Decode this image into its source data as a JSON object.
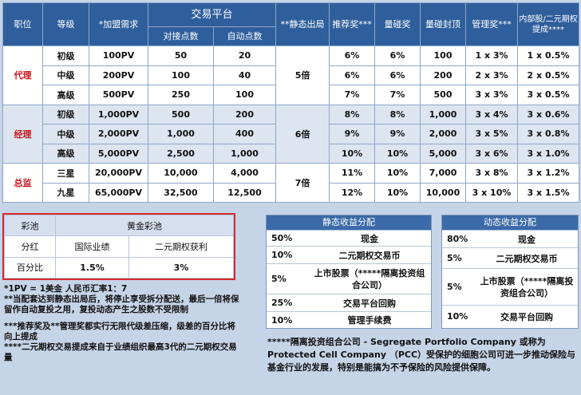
{
  "header": {
    "position": "职位",
    "level": "等级",
    "franchise": "*加盟需求",
    "trading_platform": "交易平台",
    "dock_points": "对接点数",
    "auto_points": "自动点数",
    "static_exit": "**静态出局",
    "referral": "推荐奖***",
    "volume": "量碰奖",
    "volume_cap": "量碰封顶",
    "management": "管理奖***",
    "internal": "内部股/二元期权提成****"
  },
  "groups": [
    {
      "role": "代理",
      "multiple": "5倍",
      "rows": [
        {
          "level": "初级",
          "franchise": "100PV",
          "dock": "50",
          "auto": "20",
          "referral": "6%",
          "volume": "6%",
          "cap": "100",
          "management": "1 x 3%",
          "internal": "1 x 0.5%"
        },
        {
          "level": "中级",
          "franchise": "200PV",
          "dock": "100",
          "auto": "40",
          "referral": "6%",
          "volume": "6%",
          "cap": "200",
          "management": "2 x 3%",
          "internal": "2 x 0.5%"
        },
        {
          "level": "高级",
          "franchise": "500PV",
          "dock": "250",
          "auto": "100",
          "referral": "7%",
          "volume": "7%",
          "cap": "500",
          "management": "3 x 3%",
          "internal": "3 x 0.5%"
        }
      ]
    },
    {
      "role": "经理",
      "multiple": "6倍",
      "rows": [
        {
          "level": "初级",
          "franchise": "1,000PV",
          "dock": "500",
          "auto": "200",
          "referral": "8%",
          "volume": "8%",
          "cap": "1,000",
          "management": "3 x 4%",
          "internal": "3 x 0.6%"
        },
        {
          "level": "中级",
          "franchise": "2,000PV",
          "dock": "1,000",
          "auto": "400",
          "referral": "9%",
          "volume": "9%",
          "cap": "2,000",
          "management": "3 x 5%",
          "internal": "3 x 0.8%"
        },
        {
          "level": "高级",
          "franchise": "5,000PV",
          "dock": "2,500",
          "auto": "1,000",
          "referral": "10%",
          "volume": "10%",
          "cap": "5,000",
          "management": "3 x 6%",
          "internal": "3 x 1.0%"
        }
      ]
    },
    {
      "role": "总监",
      "multiple": "7倍",
      "rows": [
        {
          "level": "三星",
          "franchise": "20,000PV",
          "dock": "10,000",
          "auto": "4,000",
          "referral": "11%",
          "volume": "10%",
          "cap": "7,000",
          "management": "3 x 8%",
          "internal": "3 x 1.2%"
        },
        {
          "level": "九星",
          "franchise": "65,000PV",
          "dock": "32,500",
          "auto": "12,500",
          "referral": "12%",
          "volume": "10%",
          "cap": "10,000",
          "management": "3 x 10%",
          "internal": "3 x 1.5%"
        }
      ]
    }
  ],
  "pool": {
    "label": "彩池",
    "title": "黄金彩池",
    "share": "分红",
    "intl": "国际业绩",
    "binary": "二元期权获利",
    "pct_label": "百分比",
    "intl_pct": "1.5%",
    "binary_pct": "3%"
  },
  "static_dist": {
    "title": "静态收益分配",
    "items": [
      {
        "pct": "50%",
        "label": "现金"
      },
      {
        "pct": "10%",
        "label": "二元期权交易币"
      },
      {
        "pct": "5%",
        "label": "上市股票（*****隔离投资组合公司）"
      },
      {
        "pct": "25%",
        "label": "交易平台回购"
      },
      {
        "pct": "10%",
        "label": "管理手续费"
      }
    ]
  },
  "dynamic_dist": {
    "title": "动态收益分配",
    "items": [
      {
        "pct": "80%",
        "label": "现金"
      },
      {
        "pct": "5%",
        "label": "二元期权交易币"
      },
      {
        "pct": "5%",
        "label": "上市股票（*****隔离投资组合公司）"
      },
      {
        "pct": "10%",
        "label": "交易平台回购"
      }
    ]
  },
  "notes": {
    "n1": "*1PV = 1美金  人民币汇率1：7",
    "n2": "**当配套达到静态出局后，将停止享受拆分配送，最后一倍将保留作自动复投之用，复投动态产生之股数不受限制",
    "n3": "***推荐奖及**管理奖都实行无限代级差压缩，级差的百分比将向上提成",
    "n4": "****二元期权交易提成来自于业绩组织最高3代的二元期权交易量"
  },
  "pcc_note": "*****隔离投资组合公司 - Segregate Portfolio Company 或称为 Protected Cell Company （PCC）受保护的细胞公司可进一步推动保险与基金行业的发展，特别是能搞为不予保险的风险提供保障。"
}
